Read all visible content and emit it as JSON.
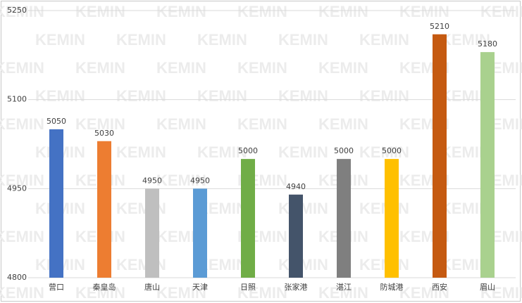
{
  "chart_data": {
    "type": "bar",
    "watermark": "KEMIN",
    "categories": [
      "营口",
      "秦皇岛",
      "唐山",
      "天津",
      "日照",
      "张家港",
      "湛江",
      "防城港",
      "西安",
      "眉山"
    ],
    "values": [
      5050,
      5030,
      4950,
      4950,
      5000,
      4940,
      5000,
      5000,
      5210,
      5180
    ],
    "colors": [
      "#4472c4",
      "#ed7d31",
      "#bfbfbf",
      "#5b9bd5",
      "#70ad47",
      "#44546a",
      "#7f7f7f",
      "#ffc000",
      "#c55a11",
      "#a9d18e"
    ],
    "ylim": [
      4800,
      5250
    ],
    "yticks": [
      4800,
      4950,
      5100,
      5250
    ],
    "grid": true
  }
}
